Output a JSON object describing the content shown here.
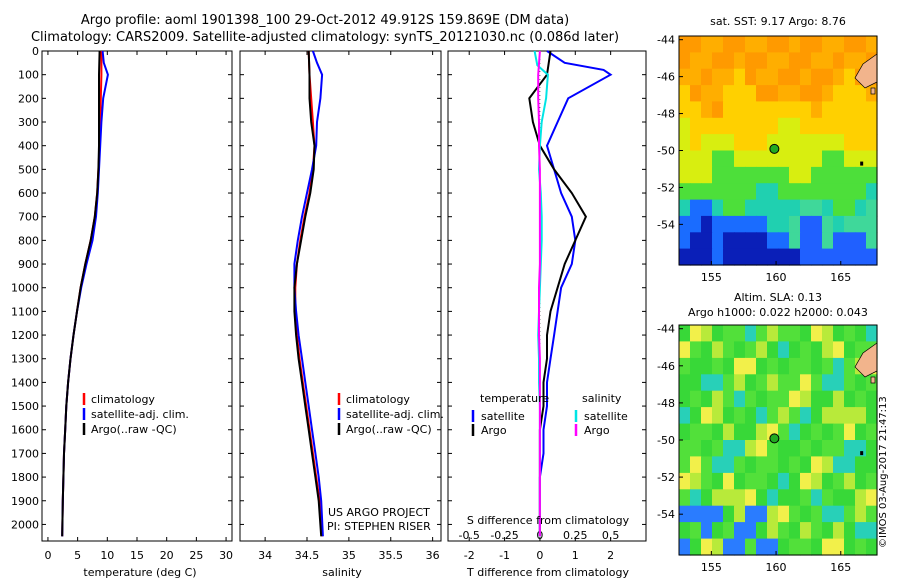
{
  "header": {
    "line1": "Argo profile: aoml 1901398_100 29-Oct-2012 49.912S 159.869E (DM data)",
    "line2": "Climatology: CARS2009. Satellite-adjusted climatology: synTS_20121030.nc (0.086d later)"
  },
  "colors": {
    "climatology": "#ff0000",
    "satellite": "#0000ff",
    "argo": "#000000",
    "sat_salinity": "#00e5e5",
    "argo_salinity": "#ff00ff"
  },
  "chart_data": [
    {
      "type": "line",
      "id": "temperature",
      "xlabel": "temperature (deg C)",
      "ylabel": "",
      "xlim": [
        -1,
        31
      ],
      "ylim": [
        2070,
        0
      ],
      "ytick_step": 100,
      "xticks": [
        0,
        5,
        10,
        15,
        20,
        25,
        30
      ],
      "legend": [
        "climatology",
        "satellite-adj. clim.",
        "Argo(..raw -QC)"
      ],
      "series": [
        {
          "name": "climatology",
          "color": "#ff0000",
          "x": [
            9.0,
            9.0,
            8.9,
            8.8,
            8.7,
            8.5,
            8.3,
            7.9,
            7.2,
            6.3,
            5.5,
            4.9,
            4.3,
            3.8,
            3.4,
            3.1,
            2.9,
            2.7,
            2.6,
            2.5,
            2.4
          ],
          "y": [
            0,
            100,
            200,
            300,
            400,
            500,
            600,
            700,
            800,
            900,
            1000,
            1100,
            1200,
            1300,
            1400,
            1500,
            1600,
            1700,
            1800,
            1900,
            2050
          ]
        },
        {
          "name": "satellite-adj. clim.",
          "color": "#0000ff",
          "x": [
            9.2,
            9.4,
            10.1,
            9.3,
            9.0,
            8.8,
            8.6,
            8.4,
            8.1,
            7.5,
            6.5,
            5.6,
            4.9,
            4.3,
            3.8,
            3.4,
            3.1,
            2.9,
            2.7,
            2.6,
            2.5,
            2.4
          ],
          "y": [
            0,
            50,
            100,
            200,
            300,
            400,
            500,
            600,
            700,
            800,
            900,
            1000,
            1100,
            1200,
            1300,
            1400,
            1500,
            1600,
            1700,
            1800,
            1900,
            2050
          ]
        },
        {
          "name": "Argo(..raw -QC)",
          "color": "#000000",
          "x": [
            8.7,
            8.6,
            8.6,
            8.6,
            8.6,
            8.5,
            8.3,
            7.9,
            7.2,
            6.3,
            5.5,
            4.9,
            4.3,
            3.8,
            3.4,
            3.1,
            2.9,
            2.7,
            2.6,
            2.5,
            2.4
          ],
          "y": [
            0,
            100,
            200,
            300,
            400,
            500,
            600,
            700,
            800,
            900,
            1000,
            1100,
            1200,
            1300,
            1400,
            1500,
            1600,
            1700,
            1800,
            1900,
            2050
          ]
        }
      ]
    },
    {
      "type": "line",
      "id": "salinity",
      "xlabel": "salinity",
      "ylabel": "",
      "xlim": [
        33.7,
        36.1
      ],
      "ylim": [
        2070,
        0
      ],
      "xticks": [
        34,
        34.5,
        35,
        35.5,
        36
      ],
      "legend": [
        "climatology",
        "satellite-adj. clim.",
        "Argo(..raw -QC)"
      ],
      "annotation": [
        "US ARGO PROJECT",
        "PI: STEPHEN RISER"
      ],
      "series": [
        {
          "name": "climatology",
          "color": "#ff0000",
          "x": [
            34.52,
            34.53,
            34.55,
            34.57,
            34.59,
            34.57,
            34.53,
            34.47,
            34.42,
            34.38,
            34.36,
            34.36,
            34.38,
            34.41,
            34.45,
            34.49,
            34.53,
            34.57,
            34.61,
            34.65,
            34.68
          ],
          "y": [
            0,
            100,
            200,
            300,
            400,
            500,
            600,
            700,
            800,
            900,
            1000,
            1100,
            1200,
            1300,
            1400,
            1500,
            1600,
            1700,
            1800,
            1900,
            2050
          ]
        },
        {
          "name": "satellite-adj. clim.",
          "color": "#0000ff",
          "x": [
            34.57,
            34.62,
            34.68,
            34.66,
            34.62,
            34.61,
            34.56,
            34.5,
            34.44,
            34.39,
            34.35,
            34.35,
            34.37,
            34.4,
            34.44,
            34.48,
            34.52,
            34.56,
            34.6,
            34.64,
            34.67,
            34.69
          ],
          "y": [
            0,
            50,
            100,
            200,
            300,
            400,
            500,
            600,
            700,
            800,
            900,
            1000,
            1100,
            1200,
            1300,
            1400,
            1500,
            1600,
            1700,
            1800,
            1900,
            2050
          ]
        },
        {
          "name": "Argo(..raw -QC)",
          "color": "#000000",
          "x": [
            34.52,
            34.53,
            34.53,
            34.55,
            34.59,
            34.58,
            34.54,
            34.48,
            34.43,
            34.38,
            34.35,
            34.35,
            34.37,
            34.4,
            34.44,
            34.48,
            34.52,
            34.56,
            34.6,
            34.64,
            34.67
          ],
          "y": [
            0,
            100,
            200,
            300,
            400,
            500,
            600,
            700,
            800,
            900,
            1000,
            1100,
            1200,
            1300,
            1400,
            1500,
            1600,
            1700,
            1800,
            1900,
            2050
          ]
        }
      ]
    },
    {
      "type": "line",
      "id": "difference",
      "xlabel": "T difference from climatology",
      "ylabel": "",
      "secondary_xlabel": "S difference from climatology",
      "xlim": [
        -2.6,
        3.0
      ],
      "ylim": [
        2070,
        0
      ],
      "xticks": [
        -2,
        -1,
        0,
        1,
        2
      ],
      "secondary_xticks": [
        -0.5,
        -0.25,
        0,
        0.25,
        0.5
      ],
      "legend_titles": [
        "temperature",
        "salinity"
      ],
      "legend": [
        "satellite",
        "Argo",
        "satellite",
        "Argo"
      ],
      "series": [
        {
          "name": "satellite",
          "group": "temperature",
          "color": "#0000ff",
          "x": [
            0.2,
            0.7,
            1.8,
            2.0,
            0.8,
            0.5,
            0.2,
            0.4,
            0.6,
            0.9,
            1.0,
            0.9,
            0.6,
            0.5,
            0.4,
            0.3,
            0.2,
            0.2,
            0.1,
            0.1,
            0.0,
            0.0
          ],
          "y": [
            0,
            50,
            80,
            100,
            200,
            300,
            400,
            500,
            600,
            700,
            800,
            900,
            1000,
            1100,
            1200,
            1300,
            1400,
            1500,
            1600,
            1700,
            1800,
            2050
          ]
        },
        {
          "name": "Argo",
          "group": "temperature",
          "color": "#000000",
          "x": [
            0.3,
            0.2,
            -0.3,
            -0.2,
            0.0,
            0.4,
            0.9,
            1.3,
            1.0,
            0.7,
            0.5,
            0.3,
            0.2,
            0.2,
            0.1,
            0.1,
            0.0,
            0.0,
            0.0,
            0.0,
            0.0
          ],
          "y": [
            0,
            100,
            200,
            300,
            400,
            500,
            600,
            700,
            800,
            900,
            1000,
            1100,
            1200,
            1300,
            1400,
            1500,
            1600,
            1700,
            1800,
            1900,
            2050
          ]
        },
        {
          "name": "satellite",
          "group": "salinity",
          "color": "#00e5e5",
          "x": [
            -0.6,
            -0.3,
            0.9,
            0.7,
            0.2,
            0.0,
            -0.1,
            0.1,
            0.2,
            0.2,
            0.1,
            0.0,
            -0.1,
            -0.2,
            -0.1,
            -0.1,
            0.0,
            0.0,
            0.0,
            0.0,
            0.0
          ],
          "y": [
            0,
            60,
            100,
            200,
            300,
            400,
            500,
            600,
            700,
            800,
            900,
            1000,
            1100,
            1200,
            1300,
            1400,
            1500,
            1600,
            1700,
            1800,
            2050
          ]
        },
        {
          "name": "Argo",
          "group": "salinity",
          "color": "#ff00ff",
          "x": [
            0.0,
            -0.2,
            -0.2,
            -0.1,
            -0.1,
            0.0,
            0.0,
            0.0,
            0.0,
            0.0,
            -0.1,
            -0.1,
            -0.1,
            0.0,
            0.0,
            0.0,
            0.0,
            0.0,
            0.0
          ],
          "y": [
            0,
            100,
            200,
            300,
            400,
            500,
            600,
            700,
            800,
            900,
            1000,
            1100,
            1200,
            1300,
            1400,
            1500,
            1600,
            1700,
            2050
          ]
        }
      ]
    },
    {
      "type": "heatmap",
      "id": "sst-map",
      "title": "sat. SST: 9.17 Argo: 8.76",
      "xticks": [
        155,
        160,
        165
      ],
      "yticks": [
        -44,
        -46,
        -48,
        -50,
        -52,
        -54
      ],
      "xlim": [
        152.5,
        167.8
      ],
      "ylim": [
        -56.2,
        -43.8
      ],
      "marker": {
        "lon": 159.869,
        "lat": -49.912
      }
    },
    {
      "type": "heatmap",
      "id": "sla-map",
      "title": [
        "Altim. SLA: 0.13",
        "Argo h1000: 0.022 h2000: 0.043"
      ],
      "xticks": [
        155,
        160,
        165
      ],
      "yticks": [
        -44,
        -46,
        -48,
        -50,
        -52,
        -54
      ],
      "xlim": [
        152.5,
        167.8
      ],
      "ylim": [
        -56.2,
        -43.8
      ],
      "marker": {
        "lon": 159.869,
        "lat": -49.912
      }
    }
  ],
  "stamp": "©IMOS 03-Aug-2017 21:47:13"
}
